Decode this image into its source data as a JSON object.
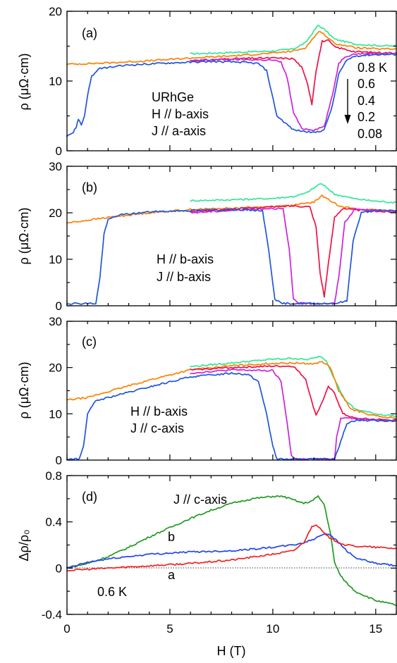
{
  "figure": {
    "xlabel": "H (T)",
    "x_ticks": [
      0,
      5,
      10,
      15
    ]
  },
  "legend": {
    "temps": [
      "0.8 K",
      "0.6",
      "0.4",
      "0.2",
      "0.08"
    ],
    "temp_colors": [
      "#33e699",
      "#ff8000",
      "#ee1144",
      "#cc22dd",
      "#1f55dd"
    ]
  },
  "chart_data": [
    {
      "type": "line",
      "panel_label": "(a)",
      "ylabel": "ρ (μΩ·cm)",
      "xlim": [
        0,
        16
      ],
      "ylim": [
        0,
        20
      ],
      "y_ticks": [
        0,
        10,
        20
      ],
      "annotations": [
        "URhGe",
        "H // b-axis",
        "J // a-axis"
      ],
      "series": [
        {
          "name": "0.8 K",
          "color": "#33e699",
          "x": [
            6,
            8,
            10,
            11,
            11.6,
            12,
            12.2,
            12.5,
            13,
            14,
            15,
            16
          ],
          "y": [
            13.9,
            14.1,
            14.3,
            14.6,
            15.5,
            17.2,
            18.0,
            17.4,
            16.0,
            15.3,
            15.1,
            15.0
          ]
        },
        {
          "name": "0.6",
          "color": "#ff8000",
          "x": [
            0,
            2,
            4,
            6,
            8,
            10,
            11,
            11.6,
            12,
            12.3,
            12.6,
            13,
            14,
            15,
            16
          ],
          "y": [
            12.4,
            12.6,
            12.9,
            13.3,
            13.6,
            14.0,
            14.3,
            14.8,
            16.3,
            17.2,
            16.4,
            15.4,
            14.8,
            14.6,
            14.6
          ]
        },
        {
          "name": "0.4",
          "color": "#ee1144",
          "x": [
            6,
            8,
            10,
            11,
            11.4,
            11.7,
            11.9,
            12.1,
            12.4,
            12.7,
            13,
            14,
            16
          ],
          "y": [
            12.9,
            13.2,
            13.3,
            13.2,
            12.0,
            9.5,
            6.7,
            11.5,
            15.7,
            15.8,
            14.9,
            14.2,
            14.0
          ]
        },
        {
          "name": "0.2",
          "color": "#cc22dd",
          "x": [
            6,
            8,
            10,
            10.4,
            10.7,
            11,
            11.4,
            12,
            12.5,
            12.9,
            13.2,
            13.5,
            14,
            16
          ],
          "y": [
            12.9,
            13.1,
            13.0,
            12.7,
            10.5,
            5.5,
            3.2,
            3.0,
            3.5,
            8.0,
            12.5,
            13.5,
            13.9,
            14.0
          ]
        },
        {
          "name": "0.08",
          "color": "#1f55dd",
          "x": [
            0,
            0.3,
            0.45,
            0.55,
            0.7,
            0.85,
            1.0,
            1.2,
            1.6,
            3,
            5,
            7,
            8.5,
            9.3,
            9.7,
            10.2,
            11,
            12,
            12.5,
            12.9,
            13.2,
            13.6,
            14,
            15,
            16
          ],
          "y": [
            2.2,
            2.6,
            3.4,
            4.6,
            3.7,
            5.0,
            8.0,
            10.7,
            11.8,
            12.3,
            12.6,
            12.8,
            12.7,
            12.5,
            11.5,
            5.0,
            3.0,
            2.6,
            3.0,
            6.5,
            11.0,
            13.0,
            13.6,
            13.8,
            13.8
          ]
        }
      ]
    },
    {
      "type": "line",
      "panel_label": "(b)",
      "ylabel": "ρ (μΩ·cm)",
      "xlim": [
        0,
        16
      ],
      "ylim": [
        0,
        30
      ],
      "y_ticks": [
        0,
        10,
        20,
        30
      ],
      "annotations": [
        "H // b-axis",
        "J // b-axis"
      ],
      "series": [
        {
          "name": "0.8 K",
          "color": "#33e699",
          "x": [
            6,
            8,
            10,
            11,
            11.6,
            12,
            12.3,
            12.6,
            13,
            14,
            15,
            16
          ],
          "y": [
            22.6,
            22.8,
            23.1,
            23.5,
            24.2,
            25.3,
            26.3,
            25.5,
            24.0,
            23.0,
            22.5,
            22.2
          ]
        },
        {
          "name": "0.6",
          "color": "#ff8000",
          "x": [
            0,
            2,
            4,
            6,
            8,
            10,
            11,
            12,
            12.4,
            12.7,
            13.2,
            14,
            16
          ],
          "y": [
            17.8,
            19.0,
            20.0,
            20.7,
            21.0,
            21.3,
            21.6,
            22.3,
            23.7,
            22.8,
            21.6,
            20.8,
            20.3
          ]
        },
        {
          "name": "0.4",
          "color": "#ee1144",
          "x": [
            6,
            8,
            10,
            11,
            11.8,
            12.1,
            12.3,
            12.5,
            12.7,
            13.0,
            13.4,
            14,
            16
          ],
          "y": [
            20.2,
            20.8,
            21.3,
            21.5,
            21.3,
            17.0,
            7.0,
            2.0,
            9.0,
            19.0,
            21.0,
            20.6,
            20.1
          ]
        },
        {
          "name": "0.2",
          "color": "#cc22dd",
          "x": [
            6,
            8,
            10,
            10.5,
            10.8,
            11.0,
            11.3,
            12,
            13,
            13.2,
            13.5,
            14,
            16
          ],
          "y": [
            20.0,
            20.5,
            21.0,
            20.8,
            12.0,
            1.5,
            0.5,
            0.5,
            0.5,
            6.0,
            18.0,
            20.8,
            20.2
          ]
        },
        {
          "name": "0.08",
          "color": "#1f55dd",
          "x": [
            0,
            0.5,
            1.0,
            1.4,
            1.6,
            1.8,
            2.0,
            2.5,
            4,
            6,
            8,
            9.5,
            9.8,
            10.1,
            10.4,
            11,
            12,
            13,
            13.6,
            13.9,
            14.3,
            15,
            16
          ],
          "y": [
            0.5,
            0.5,
            0.5,
            0.5,
            6.0,
            15.5,
            18.5,
            19.5,
            20.2,
            20.5,
            20.7,
            20.5,
            12.0,
            1.5,
            0.5,
            0.5,
            0.5,
            0.5,
            1.0,
            14.0,
            20.0,
            20.5,
            20.5
          ]
        }
      ]
    },
    {
      "type": "line",
      "panel_label": "(c)",
      "ylabel": "ρ (μΩ·cm)",
      "xlim": [
        0,
        16
      ],
      "ylim": [
        0,
        30
      ],
      "y_ticks": [
        0,
        10,
        20,
        30
      ],
      "annotations": [
        "H // b-axis",
        "J // c-axis"
      ],
      "series": [
        {
          "name": "0.8 K",
          "color": "#33e699",
          "x": [
            6,
            8,
            10,
            11,
            11.6,
            12,
            12.3,
            12.6,
            13,
            13.5,
            14,
            15,
            16
          ],
          "y": [
            20.2,
            21.0,
            21.8,
            22.0,
            21.7,
            22.0,
            22.5,
            21.5,
            17.5,
            13.0,
            11.0,
            10.0,
            9.5
          ]
        },
        {
          "name": "0.6",
          "color": "#ff8000",
          "x": [
            0,
            1,
            2,
            4,
            6,
            8,
            10,
            11,
            12,
            12.4,
            12.8,
            13.2,
            13.8,
            15,
            16
          ],
          "y": [
            13.0,
            13.5,
            14.8,
            17.3,
            19.5,
            20.4,
            20.9,
            21.0,
            20.8,
            21.3,
            20.0,
            15.0,
            11.0,
            9.5,
            9.0
          ]
        },
        {
          "name": "0.4",
          "color": "#ee1144",
          "x": [
            6,
            8,
            10,
            11,
            11.6,
            11.9,
            12.1,
            12.3,
            12.7,
            13.0,
            13.4,
            14,
            16
          ],
          "y": [
            19.5,
            20.0,
            20.3,
            20.3,
            17.5,
            12.5,
            9.8,
            11.5,
            15.8,
            14.5,
            10.0,
            9.0,
            8.6
          ]
        },
        {
          "name": "0.2",
          "color": "#cc22dd",
          "x": [
            6,
            8,
            10,
            10.4,
            10.7,
            10.9,
            11.1,
            12,
            13,
            13.1,
            13.3,
            13.6,
            14,
            16
          ],
          "y": [
            18.8,
            19.5,
            19.3,
            17.0,
            8.0,
            1.0,
            0.2,
            0.2,
            0.2,
            5.0,
            9.0,
            9.3,
            8.9,
            8.5
          ]
        },
        {
          "name": "0.08",
          "color": "#1f55dd",
          "x": [
            0,
            0.6,
            0.8,
            1.0,
            1.4,
            2,
            4,
            6,
            8,
            8.8,
            9.3,
            9.7,
            10.0,
            10.2,
            10.5,
            12,
            13,
            13.3,
            13.6,
            14,
            16
          ],
          "y": [
            0.2,
            0.2,
            3.0,
            10.0,
            12.8,
            13.5,
            15.8,
            18.0,
            18.8,
            18.5,
            17.0,
            10.0,
            3.0,
            0.2,
            0.2,
            0.2,
            0.2,
            4.0,
            8.0,
            8.6,
            8.5
          ]
        }
      ]
    },
    {
      "type": "line",
      "panel_label": "(d)",
      "ylabel": "Δρ/ρ₀",
      "xlim": [
        0,
        16
      ],
      "ylim": [
        -0.4,
        0.8
      ],
      "y_ticks": [
        -0.4,
        0,
        0.4,
        0.8
      ],
      "annotations": [
        "J // c-axis",
        "b",
        "a",
        "0.6 K"
      ],
      "series": [
        {
          "name": "c",
          "color": "#229922",
          "x": [
            0,
            1,
            2,
            3,
            4,
            5,
            6,
            7,
            8,
            9,
            10,
            10.5,
            11,
            11.5,
            11.9,
            12.2,
            12.5,
            12.8,
            13.0,
            13.3,
            13.6,
            14,
            15,
            16
          ],
          "y": [
            0.0,
            0.04,
            0.1,
            0.18,
            0.27,
            0.35,
            0.43,
            0.5,
            0.56,
            0.6,
            0.62,
            0.62,
            0.59,
            0.56,
            0.58,
            0.62,
            0.55,
            0.3,
            0.05,
            -0.07,
            -0.13,
            -0.2,
            -0.28,
            -0.32
          ]
        },
        {
          "name": "b",
          "color": "#1f44ee",
          "x": [
            0,
            1,
            2,
            3,
            4,
            6,
            8,
            10,
            11,
            11.5,
            12,
            12.5,
            12.8,
            13.2,
            13.6,
            14,
            15,
            16
          ],
          "y": [
            0.0,
            0.05,
            0.08,
            0.1,
            0.12,
            0.14,
            0.15,
            0.18,
            0.2,
            0.22,
            0.25,
            0.3,
            0.29,
            0.22,
            0.15,
            0.09,
            0.04,
            0.02
          ]
        },
        {
          "name": "a",
          "color": "#ee2222",
          "x": [
            0,
            2,
            4,
            6,
            8,
            10,
            11,
            11.5,
            11.9,
            12.1,
            12.3,
            12.6,
            13,
            13.5,
            14,
            15,
            16
          ],
          "y": [
            -0.02,
            0.0,
            0.02,
            0.04,
            0.07,
            0.12,
            0.15,
            0.22,
            0.36,
            0.38,
            0.34,
            0.28,
            0.24,
            0.2,
            0.19,
            0.18,
            0.17
          ]
        }
      ]
    }
  ]
}
